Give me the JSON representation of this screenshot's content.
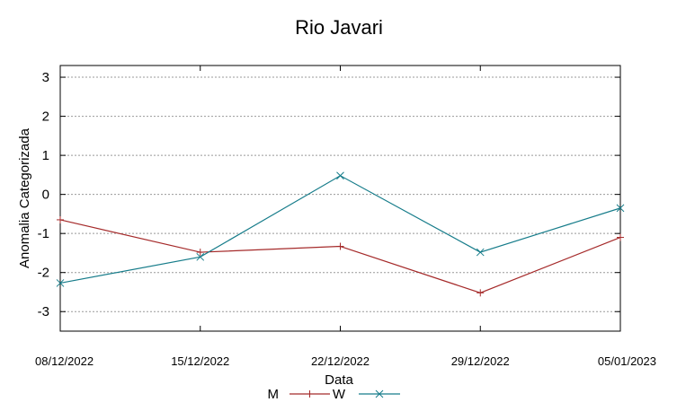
{
  "chart_data": {
    "type": "line",
    "title": "Rio Javari",
    "xlabel": "Data",
    "ylabel": "Anomalia Categorizada",
    "categories": [
      "08/12/2022",
      "15/12/2022",
      "22/12/2022",
      "29/12/2022",
      "05/01/2023"
    ],
    "yticks": [
      "3",
      "2",
      "1",
      "0",
      "-1",
      "-2",
      "-3"
    ],
    "ylim": [
      -3.5,
      3.3
    ],
    "grid": true,
    "legend_position": "bottom",
    "series": [
      {
        "name": "M",
        "color": "#a52a2a",
        "marker": "plus",
        "values": [
          -0.65,
          -1.48,
          -1.33,
          -2.52,
          -1.1
        ]
      },
      {
        "name": "W",
        "color": "#167c8a",
        "marker": "cross",
        "values": [
          -2.27,
          -1.6,
          0.48,
          -1.48,
          -0.35
        ]
      }
    ]
  }
}
